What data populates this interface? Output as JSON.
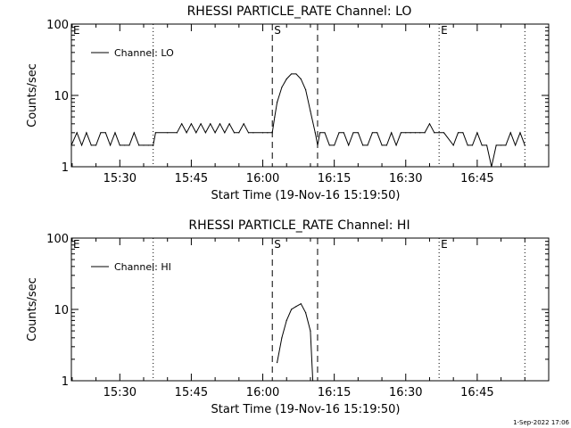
{
  "chart_data": [
    {
      "type": "line",
      "title": "RHESSI PARTICLE_RATE Channel: LO",
      "xlabel": "Start Time (19-Nov-16 15:19:50)",
      "ylabel": "Counts/sec",
      "y_scale": "log",
      "ylim": [
        1,
        100
      ],
      "y_ticks": [
        1,
        10,
        100
      ],
      "y_tick_labels": [
        "1",
        "10",
        "100"
      ],
      "xlim": [
        "15:19:50",
        "17:00:00"
      ],
      "x_ticks": [
        "15:30",
        "15:45",
        "16:00",
        "16:15",
        "16:30",
        "16:45"
      ],
      "x_tick_labels": [
        "15:30",
        "15:45",
        "16:00",
        "16:15",
        "16:30",
        "16:45"
      ],
      "legend": {
        "text": "Channel: LO",
        "position": "top-left"
      },
      "markers": [
        {
          "label": "E",
          "time": "15:19:50",
          "style": "dotted"
        },
        {
          "label": "",
          "time": "15:37:00",
          "style": "dotted"
        },
        {
          "label": "S",
          "time": "16:02:00",
          "style": "dashed"
        },
        {
          "label": "",
          "time": "16:11:30",
          "style": "dashed"
        },
        {
          "label": "E",
          "time": "16:37:00",
          "style": "dotted"
        },
        {
          "label": "",
          "time": "16:55:00",
          "style": "dotted"
        }
      ],
      "series": [
        {
          "name": "Channel: LO",
          "x": [
            "15:19:50",
            "15:21:00",
            "15:22:00",
            "15:23:00",
            "15:24:00",
            "15:25:00",
            "15:26:00",
            "15:27:00",
            "15:28:00",
            "15:29:00",
            "15:30:00",
            "15:31:00",
            "15:32:00",
            "15:33:00",
            "15:34:00",
            "15:35:00",
            "15:36:00",
            "15:37:00",
            "15:37:30",
            "15:40:00",
            "15:42:00",
            "15:43:00",
            "15:44:00",
            "15:45:00",
            "15:46:00",
            "15:47:00",
            "15:48:00",
            "15:49:00",
            "15:50:00",
            "15:51:00",
            "15:52:00",
            "15:53:00",
            "15:54:00",
            "15:55:00",
            "15:56:00",
            "15:57:00",
            "15:58:00",
            "16:00:00",
            "16:01:00",
            "16:02:00",
            "16:02:30",
            "16:03:00",
            "16:04:00",
            "16:05:00",
            "16:06:00",
            "16:07:00",
            "16:08:00",
            "16:09:00",
            "16:10:00",
            "16:11:00",
            "16:11:30",
            "16:12:00",
            "16:13:00",
            "16:14:00",
            "16:15:00",
            "16:16:00",
            "16:17:00",
            "16:18:00",
            "16:19:00",
            "16:20:00",
            "16:21:00",
            "16:22:00",
            "16:23:00",
            "16:24:00",
            "16:25:00",
            "16:26:00",
            "16:27:00",
            "16:28:00",
            "16:29:00",
            "16:30:00",
            "16:31:00",
            "16:32:00",
            "16:33:00",
            "16:34:00",
            "16:35:00",
            "16:36:00",
            "16:37:00",
            "16:38:00",
            "16:40:00",
            "16:41:00",
            "16:42:00",
            "16:43:00",
            "16:44:00",
            "16:45:00",
            "16:46:00",
            "16:47:00",
            "16:48:00",
            "16:49:00",
            "16:50:00",
            "16:51:00",
            "16:52:00",
            "16:53:00",
            "16:54:00",
            "16:55:00"
          ],
          "y": [
            2,
            3,
            2,
            3,
            2,
            2,
            3,
            3,
            2,
            3,
            2,
            2,
            2,
            3,
            2,
            2,
            2,
            2,
            3,
            3,
            3,
            4,
            3,
            4,
            3,
            4,
            3,
            4,
            3,
            4,
            3,
            4,
            3,
            3,
            4,
            3,
            3,
            3,
            3,
            3,
            5,
            8,
            13,
            17,
            20,
            20,
            17,
            12,
            6,
            3,
            2,
            3,
            3,
            2,
            2,
            3,
            3,
            2,
            3,
            3,
            2,
            2,
            3,
            3,
            2,
            2,
            3,
            2,
            3,
            3,
            3,
            3,
            3,
            3,
            4,
            3,
            3,
            3,
            2,
            3,
            3,
            2,
            2,
            3,
            2,
            2,
            1,
            2,
            2,
            2,
            3,
            2,
            3,
            2
          ]
        }
      ]
    },
    {
      "type": "line",
      "title": "RHESSI PARTICLE_RATE Channel: HI",
      "xlabel": "Start Time (19-Nov-16 15:19:50)",
      "ylabel": "Counts/sec",
      "y_scale": "log",
      "ylim": [
        1,
        100
      ],
      "y_ticks": [
        1,
        10,
        100
      ],
      "y_tick_labels": [
        "1",
        "10",
        "100"
      ],
      "xlim": [
        "15:19:50",
        "17:00:00"
      ],
      "x_ticks": [
        "15:30",
        "15:45",
        "16:00",
        "16:15",
        "16:30",
        "16:45"
      ],
      "x_tick_labels": [
        "15:30",
        "15:45",
        "16:00",
        "16:15",
        "16:30",
        "16:45"
      ],
      "legend": {
        "text": "Channel: HI",
        "position": "top-left"
      },
      "markers": [
        {
          "label": "E",
          "time": "15:19:50",
          "style": "dotted"
        },
        {
          "label": "",
          "time": "15:37:00",
          "style": "dotted"
        },
        {
          "label": "S",
          "time": "16:02:00",
          "style": "dashed"
        },
        {
          "label": "",
          "time": "16:11:30",
          "style": "dashed"
        },
        {
          "label": "E",
          "time": "16:37:00",
          "style": "dotted"
        },
        {
          "label": "",
          "time": "16:55:00",
          "style": "dotted"
        }
      ],
      "series": [
        {
          "name": "Channel: HI",
          "x": [
            "16:03:00",
            "16:04:00",
            "16:05:00",
            "16:06:00",
            "16:07:00",
            "16:08:00",
            "16:09:00",
            "16:10:00",
            "16:10:30"
          ],
          "y": [
            1.8,
            4,
            7,
            10,
            11,
            12,
            9,
            5,
            1
          ]
        }
      ]
    }
  ],
  "footer": "1-Sep-2022 17:06"
}
